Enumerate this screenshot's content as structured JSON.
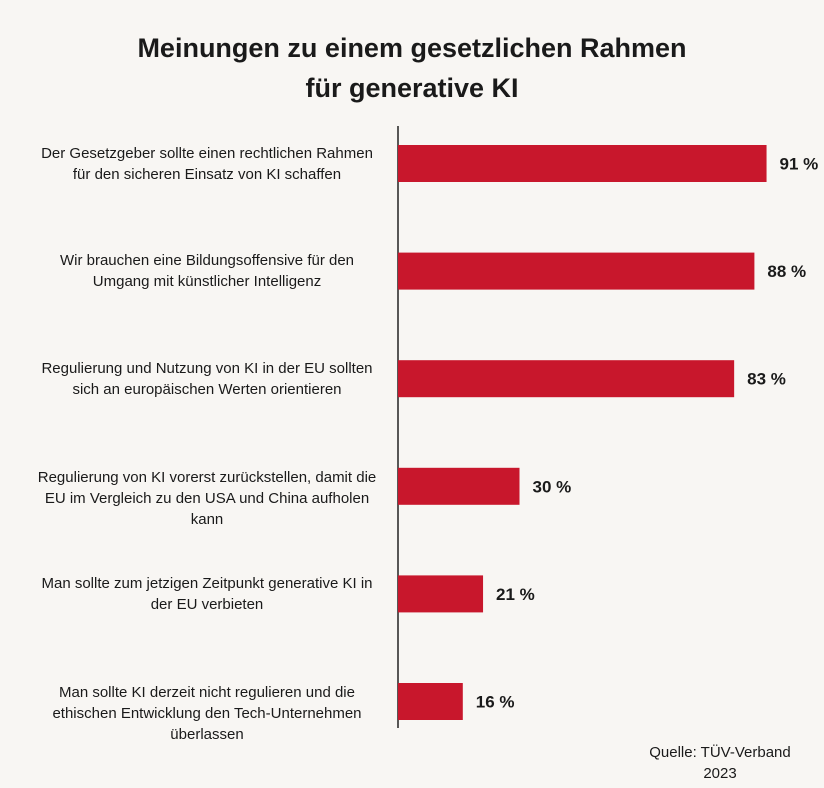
{
  "chart_data": {
    "type": "bar",
    "orientation": "horizontal",
    "title_lines": [
      "Meinungen zu einem gesetzlichen Rahmen",
      "für generative KI"
    ],
    "categories": [
      "Der Gesetzgeber sollte einen rechtlichen Rahmen für den sicheren Einsatz von KI schaffen",
      "Wir brauchen eine Bildungsoffensive für den Umgang mit künstlicher Intelligenz",
      "Regulierung und Nutzung von KI in der EU sollten sich an europäischen Werten orientieren",
      "Regulierung von KI vorerst zurückstellen, damit die EU im Vergleich zu den USA und China aufholen kann",
      "Man sollte zum jetzigen Zeitpunkt generative KI in der EU verbieten",
      "Man sollte KI derzeit nicht regulieren und die ethischen Entwicklung den Tech-Unternehmen überlassen"
    ],
    "category_lines": [
      [
        "Der Gesetzgeber sollte einen rechtlichen Rahmen",
        "für den sicheren Einsatz von KI schaffen"
      ],
      [
        "Wir brauchen eine Bildungsoffensive für den",
        "Umgang mit künstlicher Intelligenz"
      ],
      [
        "Regulierung und Nutzung von KI in der EU sollten",
        "sich an europäischen Werten orientieren"
      ],
      [
        "Regulierung von KI vorerst zurückstellen, damit die",
        "EU im Vergleich zu den USA und China aufholen",
        "kann"
      ],
      [
        "Man sollte zum jetzigen Zeitpunkt generative KI in",
        "der EU verbieten"
      ],
      [
        "Man sollte KI derzeit nicht regulieren und die",
        "ethischen Entwicklung den Tech-Unternehmen",
        "überlassen"
      ]
    ],
    "values": [
      91,
      88,
      83,
      30,
      21,
      16
    ],
    "value_labels": [
      "91 %",
      "88 %",
      "83 %",
      "30 %",
      "21 %",
      "16 %"
    ],
    "unit": "%",
    "xlim": [
      0,
      100
    ],
    "grid": false,
    "bar_color": "#c8172c"
  },
  "source": {
    "lines": [
      "Quelle: TÜV-Verband",
      "2023"
    ]
  }
}
